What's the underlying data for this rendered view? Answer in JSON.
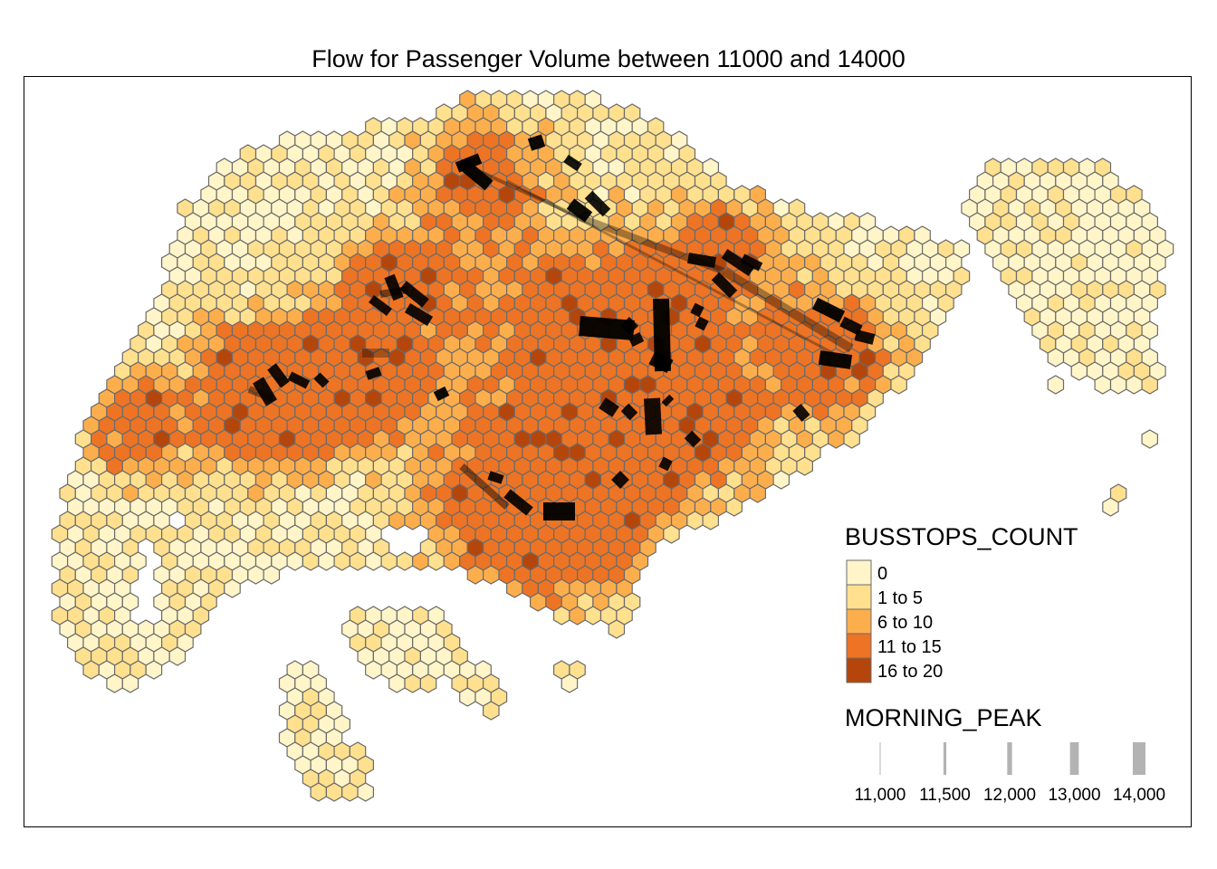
{
  "map": {
    "title": "Flow for Passenger Volume between 11000 and 14000",
    "hex_stroke": "#6b6b6b",
    "flow_color": "#000000"
  },
  "legend_fill": {
    "title": "BUSSTOPS_COUNT",
    "classes": [
      {
        "label": "0",
        "color": "#fff5c8"
      },
      {
        "label": "1 to 5",
        "color": "#fee08e"
      },
      {
        "label": "6 to 10",
        "color": "#fdae4c"
      },
      {
        "label": "11 to 15",
        "color": "#ec7424"
      },
      {
        "label": "16 to 20",
        "color": "#b4460c"
      }
    ]
  },
  "legend_width": {
    "title": "MORNING_PEAK",
    "color": "#b3b3b3",
    "entries": [
      {
        "label": "11,000",
        "value": 11000
      },
      {
        "label": "11,500",
        "value": 11500
      },
      {
        "label": "12,000",
        "value": 12000
      },
      {
        "label": "13,000",
        "value": 13000
      },
      {
        "label": "14,000",
        "value": 14000
      }
    ]
  }
}
